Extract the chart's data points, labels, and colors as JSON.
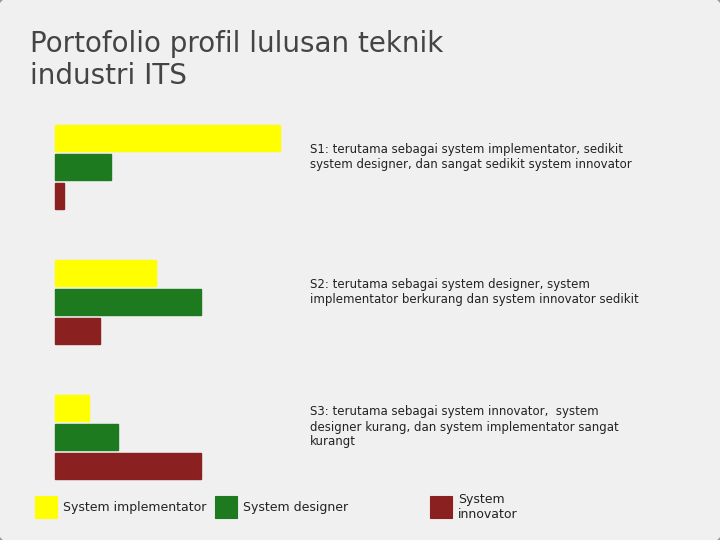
{
  "title": "Portofolio profil lulusan teknik\nindustri ITS",
  "title_fontsize": 20,
  "background_color": "#f0f0f0",
  "border_color": "#999999",
  "colors": {
    "implementator": "#ffff00",
    "designer": "#1e7a1e",
    "innovator": "#8b2020"
  },
  "s1": {
    "label": "S1: terutama sebagai system implementator, sedikit\nsystem designer, dan sangat sedikit system innovator",
    "implementator": 10,
    "designer": 2.5,
    "innovator": 0.4
  },
  "s2": {
    "label": "S2: terutama sebagai system designer, system\nimplementator berkurang dan system innovator sedikit",
    "implementator": 4.5,
    "designer": 6.5,
    "innovator": 2.0
  },
  "s3": {
    "label": "S3: terutama sebagai system innovator,  system\ndesigner kurang, dan system implementator sangat\nkurangt",
    "implementator": 1.5,
    "designer": 2.8,
    "innovator": 6.5
  },
  "legend": [
    {
      "label": "System implementator",
      "color": "#ffff00"
    },
    {
      "label": "System designer",
      "color": "#1e7a1e"
    },
    {
      "label": "System\ninnovator",
      "color": "#8b2020"
    }
  ],
  "text_fontsize": 8.5,
  "legend_fontsize": 9
}
